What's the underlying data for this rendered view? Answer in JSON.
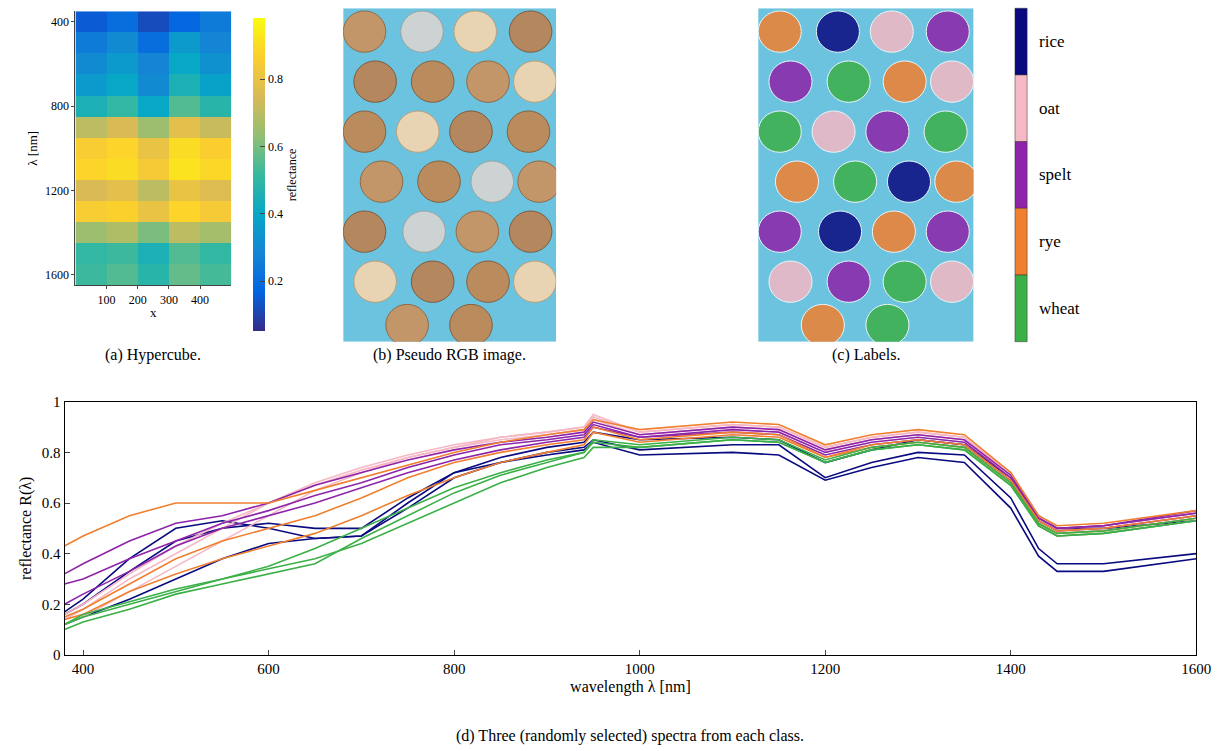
{
  "chart_data": [
    {
      "type": "heatmap",
      "title": "(a) Hypercube.",
      "x_label": "x",
      "y_label": "λ [nm]",
      "x": [
        50,
        150,
        250,
        350,
        450
      ],
      "y": [
        400,
        500,
        600,
        700,
        800,
        900,
        1000,
        1100,
        1200,
        1300,
        1400,
        1500,
        1600
      ],
      "z": [
        [
          0.15,
          0.2,
          0.12,
          0.18,
          0.25
        ],
        [
          0.25,
          0.3,
          0.2,
          0.35,
          0.28
        ],
        [
          0.3,
          0.35,
          0.28,
          0.4,
          0.32
        ],
        [
          0.35,
          0.4,
          0.3,
          0.45,
          0.38
        ],
        [
          0.45,
          0.5,
          0.4,
          0.55,
          0.48
        ],
        [
          0.7,
          0.75,
          0.65,
          0.78,
          0.72
        ],
        [
          0.85,
          0.88,
          0.8,
          0.9,
          0.86
        ],
        [
          0.88,
          0.9,
          0.84,
          0.92,
          0.89
        ],
        [
          0.75,
          0.78,
          0.7,
          0.8,
          0.76
        ],
        [
          0.85,
          0.87,
          0.8,
          0.88,
          0.84
        ],
        [
          0.65,
          0.68,
          0.6,
          0.7,
          0.66
        ],
        [
          0.5,
          0.52,
          0.45,
          0.55,
          0.5
        ],
        [
          0.52,
          0.55,
          0.48,
          0.57,
          0.53
        ]
      ],
      "xlim": [
        0,
        500
      ],
      "ylim": [
        1650,
        350
      ],
      "xticks": [
        100,
        200,
        300,
        400
      ],
      "yticks": [
        400,
        800,
        1200,
        1600
      ],
      "colorbar": {
        "title": "reflectance",
        "range": [
          0.05,
          0.98
        ],
        "ticks": [
          0.2,
          0.4,
          0.6,
          0.8
        ]
      }
    },
    {
      "type": "image",
      "title": "(b) Pseudo RGB image.",
      "grains": [
        [
          0.1,
          0.93,
          "rye"
        ],
        [
          0.37,
          0.93,
          "rice"
        ],
        [
          0.62,
          0.93,
          "oat"
        ],
        [
          0.88,
          0.93,
          "spelt"
        ],
        [
          0.15,
          0.78,
          "spelt"
        ],
        [
          0.42,
          0.78,
          "wheat"
        ],
        [
          0.68,
          0.78,
          "rye"
        ],
        [
          0.9,
          0.78,
          "oat"
        ],
        [
          0.1,
          0.63,
          "wheat"
        ],
        [
          0.35,
          0.63,
          "oat"
        ],
        [
          0.6,
          0.63,
          "spelt"
        ],
        [
          0.87,
          0.63,
          "wheat"
        ],
        [
          0.18,
          0.48,
          "rye"
        ],
        [
          0.45,
          0.48,
          "wheat"
        ],
        [
          0.7,
          0.48,
          "rice"
        ],
        [
          0.92,
          0.48,
          "rye"
        ],
        [
          0.1,
          0.33,
          "spelt"
        ],
        [
          0.38,
          0.33,
          "rice"
        ],
        [
          0.63,
          0.33,
          "rye"
        ],
        [
          0.88,
          0.33,
          "spelt"
        ],
        [
          0.15,
          0.18,
          "oat"
        ],
        [
          0.42,
          0.18,
          "spelt"
        ],
        [
          0.68,
          0.18,
          "wheat"
        ],
        [
          0.9,
          0.18,
          "oat"
        ],
        [
          0.3,
          0.05,
          "rye"
        ],
        [
          0.6,
          0.05,
          "wheat"
        ]
      ]
    },
    {
      "type": "image",
      "title": "(c) Labels.",
      "classes": [
        {
          "name": "rice",
          "color": "#0a0a80"
        },
        {
          "name": "oat",
          "color": "#f5b8c4"
        },
        {
          "name": "spelt",
          "color": "#8e24aa"
        },
        {
          "name": "rye",
          "color": "#f08030"
        },
        {
          "name": "wheat",
          "color": "#3cb048"
        }
      ]
    },
    {
      "type": "line",
      "title": "(d) Three (randomly selected) spectra from each class.",
      "x_label": "wavelength λ [nm]",
      "y_label": "reflectance R(λ)",
      "x": [
        380,
        400,
        450,
        500,
        550,
        600,
        650,
        700,
        750,
        800,
        850,
        900,
        940,
        950,
        1000,
        1100,
        1150,
        1200,
        1250,
        1300,
        1350,
        1400,
        1430,
        1450,
        1500,
        1600
      ],
      "xlim": [
        380,
        1600
      ],
      "ylim": [
        0,
        1
      ],
      "xticks": [
        400,
        600,
        800,
        1000,
        1200,
        1400,
        1600
      ],
      "yticks": [
        0,
        0.2,
        0.4,
        0.6,
        0.8,
        1
      ],
      "series": [
        {
          "name": "rice",
          "color": "#0a0a80",
          "values": [
            0.17,
            0.22,
            0.38,
            0.5,
            0.53,
            0.5,
            0.46,
            0.47,
            0.58,
            0.7,
            0.76,
            0.8,
            0.82,
            0.85,
            0.81,
            0.83,
            0.83,
            0.7,
            0.76,
            0.8,
            0.79,
            0.62,
            0.42,
            0.36,
            0.36,
            0.4
          ]
        },
        {
          "name": "rice",
          "color": "#0a0a80",
          "values": [
            0.12,
            0.15,
            0.22,
            0.3,
            0.38,
            0.44,
            0.46,
            0.47,
            0.6,
            0.72,
            0.76,
            0.79,
            0.81,
            0.84,
            0.79,
            0.8,
            0.79,
            0.69,
            0.74,
            0.78,
            0.76,
            0.58,
            0.39,
            0.33,
            0.33,
            0.38
          ]
        },
        {
          "name": "rice",
          "color": "#0a0a80",
          "values": [
            0.16,
            0.2,
            0.33,
            0.45,
            0.5,
            0.52,
            0.5,
            0.5,
            0.62,
            0.72,
            0.78,
            0.82,
            0.84,
            0.88,
            0.85,
            0.86,
            0.85,
            0.76,
            0.81,
            0.85,
            0.83,
            0.7,
            0.55,
            0.5,
            0.5,
            0.53
          ]
        },
        {
          "name": "oat",
          "color": "#f5b8c4",
          "values": [
            0.12,
            0.15,
            0.25,
            0.35,
            0.45,
            0.55,
            0.65,
            0.72,
            0.78,
            0.82,
            0.86,
            0.88,
            0.9,
            0.95,
            0.88,
            0.91,
            0.9,
            0.82,
            0.86,
            0.88,
            0.86,
            0.72,
            0.55,
            0.5,
            0.51,
            0.56
          ]
        },
        {
          "name": "oat",
          "color": "#f5b8c4",
          "values": [
            0.14,
            0.18,
            0.3,
            0.4,
            0.5,
            0.6,
            0.67,
            0.73,
            0.78,
            0.82,
            0.85,
            0.87,
            0.89,
            0.93,
            0.87,
            0.9,
            0.89,
            0.81,
            0.85,
            0.87,
            0.85,
            0.7,
            0.53,
            0.49,
            0.5,
            0.55
          ]
        },
        {
          "name": "oat",
          "color": "#f5b8c4",
          "values": [
            0.16,
            0.2,
            0.32,
            0.43,
            0.52,
            0.6,
            0.68,
            0.74,
            0.79,
            0.83,
            0.86,
            0.88,
            0.9,
            0.94,
            0.88,
            0.91,
            0.9,
            0.82,
            0.86,
            0.88,
            0.86,
            0.71,
            0.52,
            0.47,
            0.48,
            0.53
          ]
        },
        {
          "name": "spelt",
          "color": "#8e24aa",
          "values": [
            0.32,
            0.36,
            0.45,
            0.52,
            0.55,
            0.6,
            0.67,
            0.72,
            0.77,
            0.81,
            0.84,
            0.86,
            0.88,
            0.92,
            0.87,
            0.9,
            0.89,
            0.81,
            0.85,
            0.87,
            0.85,
            0.71,
            0.54,
            0.5,
            0.51,
            0.57
          ]
        },
        {
          "name": "spelt",
          "color": "#8e24aa",
          "values": [
            0.28,
            0.3,
            0.38,
            0.45,
            0.52,
            0.57,
            0.63,
            0.68,
            0.74,
            0.79,
            0.83,
            0.85,
            0.87,
            0.91,
            0.86,
            0.89,
            0.88,
            0.8,
            0.84,
            0.86,
            0.84,
            0.7,
            0.54,
            0.5,
            0.51,
            0.56
          ]
        },
        {
          "name": "spelt",
          "color": "#8e24aa",
          "values": [
            0.2,
            0.24,
            0.33,
            0.43,
            0.5,
            0.55,
            0.6,
            0.66,
            0.72,
            0.77,
            0.81,
            0.84,
            0.86,
            0.9,
            0.86,
            0.88,
            0.87,
            0.79,
            0.83,
            0.85,
            0.83,
            0.69,
            0.53,
            0.49,
            0.5,
            0.55
          ]
        },
        {
          "name": "rye",
          "color": "#f08030",
          "values": [
            0.43,
            0.47,
            0.55,
            0.6,
            0.6,
            0.6,
            0.65,
            0.7,
            0.75,
            0.8,
            0.84,
            0.87,
            0.89,
            0.93,
            0.89,
            0.92,
            0.91,
            0.83,
            0.87,
            0.89,
            0.87,
            0.72,
            0.55,
            0.51,
            0.52,
            0.57
          ]
        },
        {
          "name": "rye",
          "color": "#f08030",
          "values": [
            0.15,
            0.18,
            0.28,
            0.38,
            0.45,
            0.5,
            0.55,
            0.62,
            0.7,
            0.76,
            0.8,
            0.83,
            0.85,
            0.9,
            0.85,
            0.88,
            0.87,
            0.78,
            0.83,
            0.85,
            0.83,
            0.69,
            0.53,
            0.49,
            0.5,
            0.55
          ]
        },
        {
          "name": "rye",
          "color": "#f08030",
          "values": [
            0.14,
            0.16,
            0.25,
            0.32,
            0.38,
            0.43,
            0.48,
            0.55,
            0.63,
            0.7,
            0.76,
            0.8,
            0.83,
            0.88,
            0.84,
            0.87,
            0.86,
            0.78,
            0.82,
            0.84,
            0.82,
            0.68,
            0.52,
            0.48,
            0.49,
            0.54
          ]
        },
        {
          "name": "wheat",
          "color": "#3cb048",
          "values": [
            0.12,
            0.15,
            0.2,
            0.25,
            0.3,
            0.34,
            0.38,
            0.44,
            0.52,
            0.6,
            0.68,
            0.74,
            0.78,
            0.82,
            0.82,
            0.85,
            0.84,
            0.76,
            0.81,
            0.83,
            0.81,
            0.67,
            0.51,
            0.47,
            0.48,
            0.53
          ]
        },
        {
          "name": "wheat",
          "color": "#3cb048",
          "values": [
            0.1,
            0.13,
            0.18,
            0.24,
            0.28,
            0.32,
            0.36,
            0.46,
            0.55,
            0.64,
            0.71,
            0.76,
            0.8,
            0.85,
            0.83,
            0.86,
            0.85,
            0.77,
            0.82,
            0.84,
            0.82,
            0.68,
            0.52,
            0.48,
            0.49,
            0.54
          ]
        },
        {
          "name": "wheat",
          "color": "#3cb048",
          "values": [
            0.12,
            0.16,
            0.21,
            0.26,
            0.3,
            0.35,
            0.42,
            0.5,
            0.58,
            0.66,
            0.72,
            0.77,
            0.8,
            0.84,
            0.82,
            0.85,
            0.84,
            0.76,
            0.81,
            0.83,
            0.81,
            0.67,
            0.51,
            0.47,
            0.48,
            0.53
          ]
        }
      ]
    }
  ]
}
